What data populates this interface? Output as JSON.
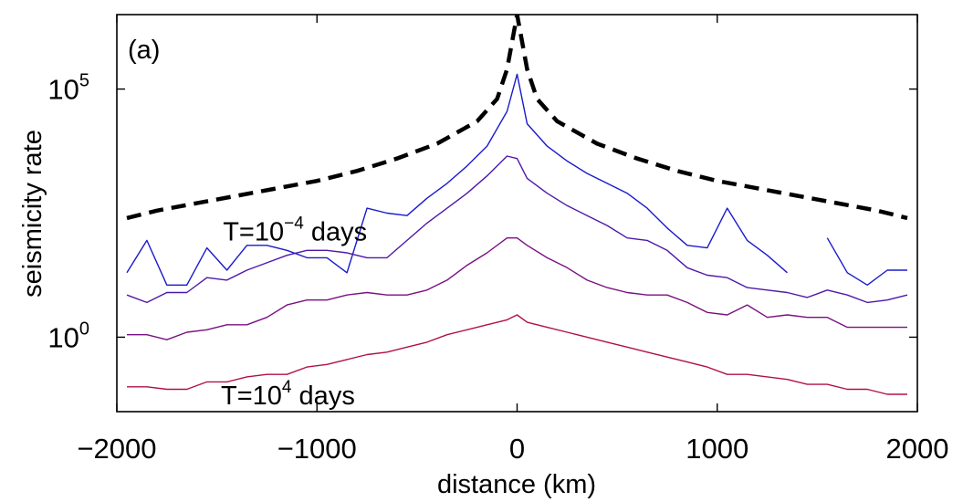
{
  "chart_data": {
    "type": "line",
    "panel_label": "(a)",
    "xlabel": "distance (km)",
    "ylabel": "seismicity rate",
    "xlim": [
      -2000,
      2000
    ],
    "ylog": true,
    "ylim_log10": [
      -1.5,
      6.5
    ],
    "xticks": [
      -2000,
      -1000,
      0,
      1000,
      2000
    ],
    "xtick_labels": [
      "−2000",
      "−1000",
      "0",
      "1000",
      "2000"
    ],
    "yticks": [
      {
        "base": "10",
        "exp": "0",
        "log10": 0
      },
      {
        "base": "10",
        "exp": "5",
        "log10": 5
      }
    ],
    "grid": false,
    "annotations": [
      {
        "id": "upper",
        "prefix": "T=10",
        "exp": "−4",
        "suffix": " days",
        "x": -1470,
        "y_log10": 1.95
      },
      {
        "id": "lower",
        "prefix": "T=10",
        "exp": "4",
        "suffix": " days",
        "x": -1480,
        "y_log10": -1.35
      }
    ],
    "reference_curve": {
      "style": "dashed",
      "color": "#000000",
      "x": [
        -1950,
        -1800,
        -1600,
        -1400,
        -1200,
        -1000,
        -800,
        -600,
        -400,
        -200,
        -100,
        -50,
        0,
        50,
        100,
        200,
        400,
        600,
        800,
        1000,
        1200,
        1400,
        1600,
        1800,
        1950
      ],
      "y_log10": [
        2.4,
        2.55,
        2.7,
        2.85,
        3.0,
        3.15,
        3.35,
        3.6,
        3.9,
        4.35,
        4.8,
        5.4,
        6.5,
        5.4,
        4.8,
        4.35,
        3.9,
        3.6,
        3.35,
        3.15,
        3.0,
        2.85,
        2.7,
        2.55,
        2.4
      ]
    },
    "series": [
      {
        "color": "#1a1acc",
        "x": [
          -1950,
          -1850,
          -1750,
          -1650,
          -1550,
          -1450,
          -1350,
          -1250,
          -1150,
          -1050,
          -950,
          -850,
          -750,
          -650,
          -550,
          -450,
          -350,
          -250,
          -150,
          -50,
          0,
          50,
          150,
          250,
          350,
          450,
          550,
          650,
          750,
          850,
          950,
          1050,
          1150,
          1250,
          1350,
          null,
          1550,
          1650,
          1750,
          1850,
          1950
        ],
        "y_log10": [
          1.3,
          1.95,
          1.05,
          1.05,
          1.8,
          1.35,
          1.85,
          1.85,
          1.75,
          1.6,
          1.6,
          1.3,
          2.6,
          2.5,
          2.45,
          2.8,
          3.1,
          3.45,
          3.85,
          4.55,
          5.3,
          4.3,
          3.85,
          3.55,
          3.3,
          3.1,
          2.9,
          2.6,
          2.2,
          1.85,
          1.8,
          2.6,
          1.95,
          1.65,
          1.3,
          null,
          2.0,
          1.3,
          1.05,
          1.35,
          1.35
        ]
      },
      {
        "color": "#4f18a8",
        "x": [
          -1950,
          -1850,
          -1750,
          -1650,
          -1550,
          -1450,
          -1350,
          -1250,
          -1150,
          -1050,
          -950,
          -850,
          -750,
          -650,
          -550,
          -450,
          -350,
          -250,
          -150,
          -50,
          0,
          50,
          150,
          250,
          350,
          450,
          550,
          650,
          750,
          850,
          950,
          1050,
          1150,
          1250,
          1350,
          1450,
          1550,
          1650,
          1750,
          1850,
          1950
        ],
        "y_log10": [
          0.85,
          0.7,
          0.9,
          0.9,
          1.2,
          1.15,
          1.35,
          1.5,
          1.65,
          1.75,
          1.75,
          1.7,
          1.6,
          1.6,
          1.95,
          2.3,
          2.6,
          2.9,
          3.25,
          3.65,
          3.6,
          3.2,
          2.9,
          2.65,
          2.45,
          2.25,
          2.0,
          1.95,
          1.75,
          1.4,
          1.25,
          1.2,
          1.0,
          0.95,
          0.9,
          0.8,
          0.95,
          0.85,
          0.7,
          0.75,
          0.85
        ]
      },
      {
        "color": "#7a1080",
        "x": [
          -1950,
          -1850,
          -1750,
          -1650,
          -1550,
          -1450,
          -1350,
          -1250,
          -1150,
          -1050,
          -950,
          -850,
          -750,
          -650,
          -550,
          -450,
          -350,
          -250,
          -150,
          -50,
          0,
          50,
          150,
          250,
          350,
          450,
          550,
          650,
          750,
          850,
          950,
          1050,
          1150,
          1250,
          1350,
          1450,
          1550,
          1650,
          1750,
          1850,
          1950
        ],
        "y_log10": [
          0.05,
          0.05,
          -0.05,
          0.1,
          0.15,
          0.25,
          0.25,
          0.4,
          0.65,
          0.75,
          0.75,
          0.85,
          0.9,
          0.85,
          0.85,
          0.95,
          1.15,
          1.45,
          1.7,
          2.0,
          2.0,
          1.85,
          1.6,
          1.4,
          1.15,
          1.0,
          0.9,
          0.85,
          0.85,
          0.7,
          0.5,
          0.45,
          0.65,
          0.4,
          0.45,
          0.4,
          0.4,
          0.2,
          0.2,
          0.2,
          0.2
        ]
      },
      {
        "color": "#b0104a",
        "x": [
          -1950,
          -1850,
          -1750,
          -1650,
          -1550,
          -1450,
          -1350,
          -1250,
          -1150,
          -1050,
          -950,
          -850,
          -750,
          -650,
          -550,
          -450,
          -350,
          -250,
          -150,
          -50,
          0,
          50,
          150,
          250,
          350,
          450,
          550,
          650,
          750,
          850,
          950,
          1050,
          1150,
          1250,
          1350,
          1450,
          1550,
          1650,
          1750,
          1850,
          1950
        ],
        "y_log10": [
          -1.0,
          -1.0,
          -1.05,
          -1.05,
          -0.9,
          -0.9,
          -0.8,
          -0.75,
          -0.75,
          -0.6,
          -0.55,
          -0.45,
          -0.35,
          -0.3,
          -0.2,
          -0.1,
          0.05,
          0.15,
          0.25,
          0.35,
          0.45,
          0.3,
          0.2,
          0.1,
          0.0,
          -0.1,
          -0.2,
          -0.3,
          -0.4,
          -0.5,
          -0.6,
          -0.75,
          -0.75,
          -0.8,
          -0.85,
          -0.95,
          -0.95,
          -1.05,
          -1.05,
          -1.15,
          -1.15
        ]
      }
    ]
  }
}
